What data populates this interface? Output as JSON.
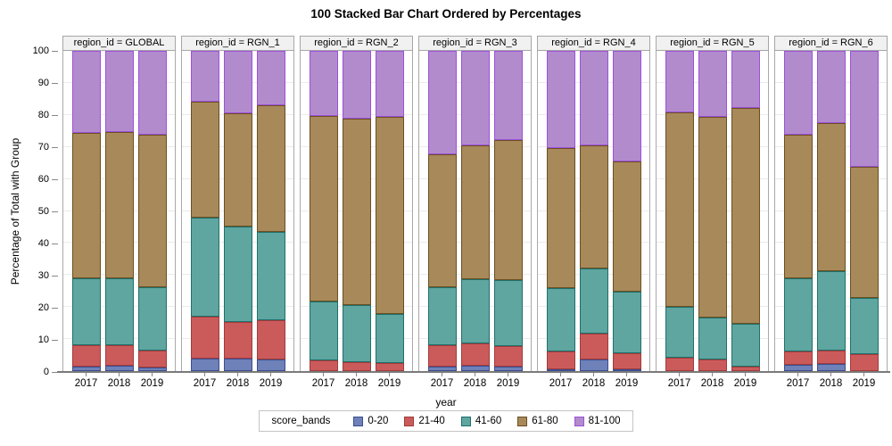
{
  "title": "100 Stacked Bar Chart Ordered by Percentages",
  "axes": {
    "y_label": "Percentage of Total with Group",
    "x_label": "year",
    "y_ticks": [
      "100",
      "90",
      "80",
      "70",
      "60",
      "50",
      "40",
      "30",
      "20",
      "10",
      "0"
    ]
  },
  "legend": {
    "title": "score_bands",
    "entries": [
      "0-20",
      "21-40",
      "41-60",
      "61-80",
      "81-100"
    ]
  },
  "colors": {
    "bands": {
      "0-20": {
        "fill": "#6E81B8",
        "border": "#3C4E91"
      },
      "21-40": {
        "fill": "#CB5B5B",
        "border": "#A33B3B"
      },
      "41-60": {
        "fill": "#5FA5A0",
        "border": "#1E716C"
      },
      "61-80": {
        "fill": "#A8895A",
        "border": "#6B4F21"
      },
      "81-100": {
        "fill": "#B28BCD",
        "border": "#9D50DB"
      }
    },
    "header_bg": "#F1F1F1",
    "panel_border": "#A9A9A9",
    "grid": "#EBEBEB",
    "axis_line": "#7A7A7A"
  },
  "chart_data": {
    "type": "bar",
    "stacked": true,
    "percent_of_total": true,
    "ylim": [
      0,
      100
    ],
    "x": [
      "2017",
      "2018",
      "2019"
    ],
    "bands": [
      "0-20",
      "21-40",
      "41-60",
      "61-80",
      "81-100"
    ],
    "legend_position": "bottom",
    "grid": true,
    "facets": [
      {
        "label": "region_id = GLOBAL",
        "values": {
          "2017": [
            1.5,
            6.6,
            21.0,
            45.4,
            25.5
          ],
          "2018": [
            1.6,
            6.6,
            20.9,
            45.6,
            25.3
          ],
          "2019": [
            1.2,
            5.3,
            19.6,
            47.7,
            26.2
          ]
        }
      },
      {
        "label": "region_id = RGN_1",
        "values": {
          "2017": [
            3.9,
            13.0,
            31.1,
            36.0,
            16.0
          ],
          "2018": [
            3.8,
            11.4,
            29.8,
            35.5,
            19.5
          ],
          "2019": [
            3.7,
            12.3,
            27.5,
            39.5,
            17.0
          ]
        }
      },
      {
        "label": "region_id = RGN_2",
        "values": {
          "2017": [
            0,
            3.3,
            18.5,
            58.0,
            20.2
          ],
          "2018": [
            0,
            2.9,
            17.7,
            58.3,
            21.1
          ],
          "2019": [
            0,
            2.6,
            15.2,
            61.5,
            20.7
          ]
        }
      },
      {
        "label": "region_id = RGN_3",
        "values": {
          "2017": [
            1.5,
            6.5,
            18.3,
            41.5,
            32.2
          ],
          "2018": [
            1.6,
            7.1,
            20.0,
            41.9,
            29.4
          ],
          "2019": [
            1.4,
            6.4,
            20.6,
            43.8,
            27.8
          ]
        }
      },
      {
        "label": "region_id = RGN_4",
        "values": {
          "2017": [
            0.6,
            5.5,
            19.9,
            43.6,
            30.4
          ],
          "2018": [
            3.5,
            8.2,
            20.2,
            38.7,
            29.4
          ],
          "2019": [
            0.6,
            4.9,
            19.2,
            40.7,
            34.6
          ]
        }
      },
      {
        "label": "region_id = RGN_5",
        "values": {
          "2017": [
            0,
            4.2,
            15.9,
            60.7,
            19.2
          ],
          "2018": [
            0,
            3.5,
            13.2,
            62.7,
            20.6
          ],
          "2019": [
            0,
            1.5,
            13.3,
            67.5,
            17.7
          ]
        }
      },
      {
        "label": "region_id = RGN_6",
        "values": {
          "2017": [
            2.0,
            4.2,
            22.9,
            44.7,
            26.2
          ],
          "2018": [
            2.1,
            4.3,
            24.7,
            46.4,
            22.5
          ],
          "2019": [
            0,
            5.2,
            17.7,
            40.9,
            36.2
          ]
        }
      }
    ]
  }
}
